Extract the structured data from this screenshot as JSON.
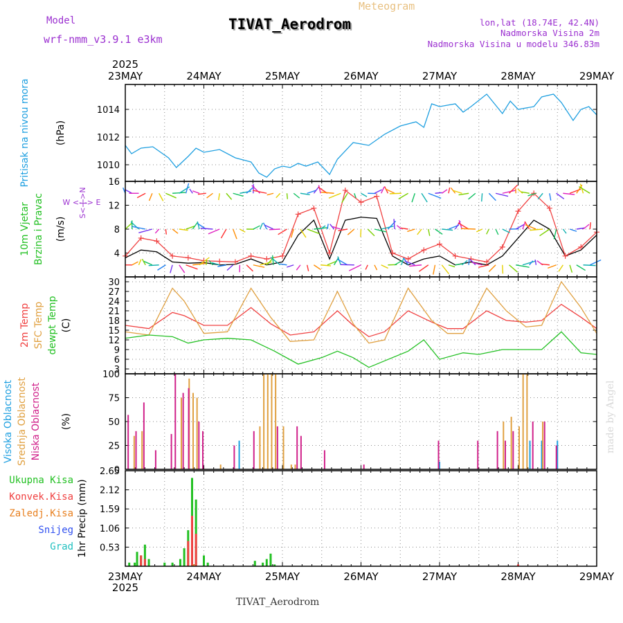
{
  "header": {
    "model_label": "Model",
    "model_name": "wrf-nmm_v3.9.1  e3km",
    "meteogram_label": "Meteogram",
    "station": "TIVAT_Aerodrom",
    "lonlat": "lon,lat (18.74E, 42.4N)",
    "elevation": "Nadmorska Visina 2m",
    "model_elevation": "Nadmorska Visina u modelu 346.83m",
    "year_top": "2025",
    "year_bottom": "2025",
    "footer_station": "TIVAT_Aerodrom",
    "watermark": "made by Angel"
  },
  "colors": {
    "purple": "#9b30d0",
    "gold": "#e8c080",
    "pressure": "#1e9fe0",
    "green": "#22c022",
    "red": "#f04040",
    "orange": "#e88020",
    "tan": "#e0a040",
    "magenta": "#d0208a",
    "blue": "#3050f0",
    "cyan": "#20c0c0",
    "black": "#000000"
  },
  "chart_data": [
    {
      "id": "pressure",
      "type": "line",
      "title_lines": [
        "Pritisak na nivou mora"
      ],
      "ylabel": "(hPa)",
      "x_ticks": [
        "23MAY",
        "24MAY",
        "25MAY",
        "26MAY",
        "27MAY",
        "28MAY",
        "29MAY"
      ],
      "ylim": [
        1008.8,
        1015.8
      ],
      "yticks": [
        1010,
        1012,
        1014
      ],
      "series": [
        {
          "name": "Pritisak",
          "x": [
            0,
            0.08,
            0.2,
            0.35,
            0.55,
            0.65,
            0.8,
            0.9,
            1.0,
            1.2,
            1.4,
            1.6,
            1.7,
            1.8,
            1.9,
            2.0,
            2.1,
            2.2,
            2.3,
            2.45,
            2.6,
            2.7,
            2.9,
            3.1,
            3.3,
            3.5,
            3.7,
            3.8,
            3.9,
            4.0,
            4.2,
            4.3,
            4.4,
            4.6,
            4.7,
            4.8,
            4.9,
            5.0,
            5.2,
            5.3,
            5.45,
            5.55,
            5.7,
            5.8,
            5.9,
            6.0
          ],
          "values": [
            1011.4,
            1010.8,
            1011.2,
            1011.3,
            1010.5,
            1009.8,
            1010.6,
            1011.2,
            1010.9,
            1011.1,
            1010.5,
            1010.2,
            1009.4,
            1009.1,
            1009.7,
            1009.9,
            1009.8,
            1010.1,
            1009.9,
            1010.2,
            1009.3,
            1010.4,
            1011.6,
            1011.4,
            1012.2,
            1012.8,
            1013.1,
            1012.7,
            1014.4,
            1014.2,
            1014.4,
            1013.8,
            1014.2,
            1015.1,
            1014.4,
            1013.7,
            1014.6,
            1014.0,
            1014.2,
            1014.9,
            1015.1,
            1014.5,
            1013.2,
            1014.0,
            1014.2,
            1013.6
          ],
          "color": "#1e9fe0"
        }
      ]
    },
    {
      "id": "wind",
      "type": "line",
      "title_lines": [
        "10m Vjetar",
        "Brzina i Pravac"
      ],
      "ylabel": "(m/s)",
      "compass": "W <-|-> E",
      "compass_ns": "S<-|->N",
      "ylim": [
        0,
        16
      ],
      "yticks": [
        4,
        8,
        12,
        16
      ],
      "series": [
        {
          "name": "Brzina",
          "x": [
            0,
            0.2,
            0.4,
            0.6,
            0.8,
            1.0,
            1.2,
            1.4,
            1.6,
            1.8,
            2.0,
            2.2,
            2.4,
            2.6,
            2.8,
            3.0,
            3.2,
            3.4,
            3.6,
            3.8,
            4.0,
            4.2,
            4.4,
            4.6,
            4.8,
            5.0,
            5.2,
            5.4,
            5.6,
            5.8,
            6.0
          ],
          "values": [
            3.2,
            4.5,
            4.2,
            2.5,
            2.3,
            2.4,
            2.0,
            2.1,
            3.0,
            2.0,
            2.5,
            7.0,
            9.5,
            3.0,
            9.5,
            10.0,
            9.8,
            3.5,
            2.0,
            3.0,
            3.5,
            2.0,
            2.5,
            2.0,
            3.5,
            6.5,
            9.5,
            8.0,
            3.5,
            4.5,
            7.0
          ],
          "color": "#000000"
        },
        {
          "name": "Udari",
          "x": [
            0,
            0.2,
            0.4,
            0.6,
            0.8,
            1.0,
            1.2,
            1.4,
            1.6,
            1.8,
            2.0,
            2.2,
            2.4,
            2.6,
            2.8,
            3.0,
            3.2,
            3.4,
            3.6,
            3.8,
            4.0,
            4.2,
            4.4,
            4.6,
            4.8,
            5.0,
            5.2,
            5.4,
            5.6,
            5.8,
            6.0
          ],
          "values": [
            3.5,
            6.5,
            6.0,
            3.5,
            3.2,
            2.7,
            2.6,
            2.5,
            3.5,
            3.0,
            3.5,
            10.5,
            11.5,
            4.0,
            14.5,
            12.5,
            13.5,
            4.0,
            3.0,
            4.5,
            5.5,
            3.5,
            3.0,
            2.5,
            5.0,
            11.0,
            14.0,
            11.5,
            3.5,
            5.0,
            7.5
          ],
          "color": "#f04040"
        }
      ]
    },
    {
      "id": "temperature",
      "type": "line",
      "title_lines": [
        "2m Temp",
        "SFC Temp",
        "dewpt Temp"
      ],
      "ylabel": "(C)",
      "ylim": [
        1.5,
        31.5
      ],
      "yticks": [
        3,
        6,
        9,
        12,
        15,
        18,
        21,
        24,
        27,
        30
      ],
      "series": [
        {
          "name": "2m Temp",
          "x": [
            0,
            0.3,
            0.6,
            0.75,
            1.0,
            1.3,
            1.6,
            1.85,
            2.1,
            2.4,
            2.7,
            2.9,
            3.1,
            3.3,
            3.6,
            3.9,
            4.1,
            4.3,
            4.6,
            4.85,
            5.1,
            5.3,
            5.55,
            5.8,
            6.0
          ],
          "values": [
            16.5,
            15.5,
            20.5,
            19.5,
            16.5,
            16.5,
            22.0,
            17.0,
            13.5,
            14.5,
            21.0,
            16.5,
            13.0,
            14.5,
            21.0,
            17.5,
            15.5,
            15.5,
            21.0,
            18.0,
            17.5,
            18.0,
            23.0,
            19.0,
            15.5
          ],
          "color": "#f04040"
        },
        {
          "name": "SFC Temp",
          "x": [
            0,
            0.3,
            0.6,
            0.75,
            1.0,
            1.3,
            1.6,
            1.85,
            2.1,
            2.4,
            2.7,
            2.9,
            3.1,
            3.3,
            3.6,
            3.9,
            4.1,
            4.3,
            4.6,
            4.85,
            5.1,
            5.3,
            5.55,
            5.8,
            6.0
          ],
          "values": [
            14.5,
            13.5,
            28.0,
            24.0,
            14.0,
            14.5,
            28.0,
            19.0,
            11.5,
            12.0,
            27.0,
            17.0,
            11.0,
            12.0,
            28.0,
            18.0,
            14.0,
            14.0,
            28.0,
            21.0,
            16.0,
            16.5,
            30.0,
            22.0,
            14.0
          ],
          "color": "#e0a040"
        },
        {
          "name": "dewpt Temp",
          "x": [
            0,
            0.3,
            0.6,
            0.8,
            1.0,
            1.3,
            1.6,
            1.9,
            2.2,
            2.5,
            2.7,
            2.9,
            3.1,
            3.3,
            3.6,
            3.8,
            4.0,
            4.3,
            4.5,
            4.8,
            5.0,
            5.3,
            5.55,
            5.8,
            6.0
          ],
          "values": [
            12.5,
            13.5,
            13.0,
            11.0,
            12.0,
            12.5,
            12.0,
            8.5,
            4.5,
            6.5,
            8.5,
            6.5,
            3.5,
            5.5,
            8.5,
            12.0,
            6.0,
            8.0,
            7.5,
            9.0,
            9.0,
            9.0,
            14.5,
            8.0,
            7.5
          ],
          "color": "#22c022"
        }
      ]
    },
    {
      "id": "clouds",
      "type": "bar",
      "title_lines": [
        "Visoka Oblacnost",
        "Srednja Oblacnost",
        "Niska Oblacnost"
      ],
      "ylabel": "(%)",
      "ylim": [
        0,
        100
      ],
      "yticks": [
        0,
        25,
        50,
        75,
        100
      ],
      "series": [
        {
          "name": "Visoka",
          "color": "#1e9fe0",
          "x": [
            1.45,
            4.0,
            5.15,
            5.3,
            5.5
          ],
          "values": [
            30,
            8,
            30,
            30,
            30
          ]
        },
        {
          "name": "Srednja",
          "color": "#e0a040",
          "x": [
            0.1,
            0.2,
            0.7,
            0.8,
            0.85,
            0.9,
            1.2,
            1.7,
            1.75,
            1.8,
            1.85,
            1.9,
            2.0,
            2.1,
            2.15,
            4.8,
            4.9,
            5.0,
            5.05,
            5.1,
            5.3
          ],
          "values": [
            35,
            40,
            75,
            95,
            80,
            75,
            5,
            45,
            100,
            100,
            100,
            100,
            45,
            5,
            5,
            50,
            55,
            45,
            100,
            100,
            50
          ]
        },
        {
          "name": "Niska",
          "color": "#d0208a",
          "x": [
            0.05,
            0.15,
            0.25,
            0.4,
            0.6,
            0.65,
            0.75,
            0.82,
            0.95,
            1.0,
            1.4,
            1.65,
            1.95,
            2.2,
            2.25,
            2.55,
            3.05,
            4.0,
            4.5,
            4.75,
            4.85,
            4.95,
            5.2,
            5.35,
            5.5
          ],
          "values": [
            57,
            40,
            70,
            20,
            37,
            100,
            80,
            85,
            50,
            40,
            25,
            40,
            45,
            45,
            35,
            20,
            5,
            30,
            30,
            40,
            30,
            40,
            50,
            50,
            25
          ]
        }
      ]
    },
    {
      "id": "precip",
      "type": "bar",
      "title_lines": [
        "Ukupna Kisa",
        "Konvek.Kisa",
        "Zaledj.Kisa",
        "Snijeg",
        "Grad"
      ],
      "ylabel": "1hr Precip (mm)",
      "ylim": [
        0,
        2.65
      ],
      "yticks": [
        0.53,
        1.06,
        1.59,
        2.12,
        2.65
      ],
      "series": [
        {
          "name": "Ukupna Kisa",
          "color": "#22c022",
          "x": [
            0.05,
            0.12,
            0.15,
            0.2,
            0.25,
            0.3,
            0.5,
            0.6,
            0.7,
            0.75,
            0.8,
            0.85,
            0.9,
            1.0,
            1.05,
            1.65,
            1.75,
            1.8,
            1.85,
            1.9
          ],
          "values": [
            0.1,
            0.1,
            0.4,
            0.3,
            0.6,
            0.2,
            0.1,
            0.1,
            0.2,
            0.5,
            1.0,
            2.45,
            1.85,
            0.3,
            0.1,
            0.15,
            0.1,
            0.2,
            0.35,
            0.05
          ]
        },
        {
          "name": "Konvek.Kisa",
          "color": "#f04040",
          "x": [
            0.2,
            0.25,
            0.8,
            0.85,
            0.9,
            5.0
          ],
          "values": [
            0.3,
            0.2,
            0.7,
            1.4,
            0.9,
            0.05
          ]
        },
        {
          "name": "Zaledj.Kisa",
          "color": "#e88020",
          "x": [
            0.87
          ],
          "values": [
            0.05
          ]
        },
        {
          "name": "Snijeg",
          "color": "#3050f0",
          "x": [],
          "values": []
        },
        {
          "name": "Grad",
          "color": "#20c0c0",
          "x": [],
          "values": []
        }
      ]
    }
  ]
}
